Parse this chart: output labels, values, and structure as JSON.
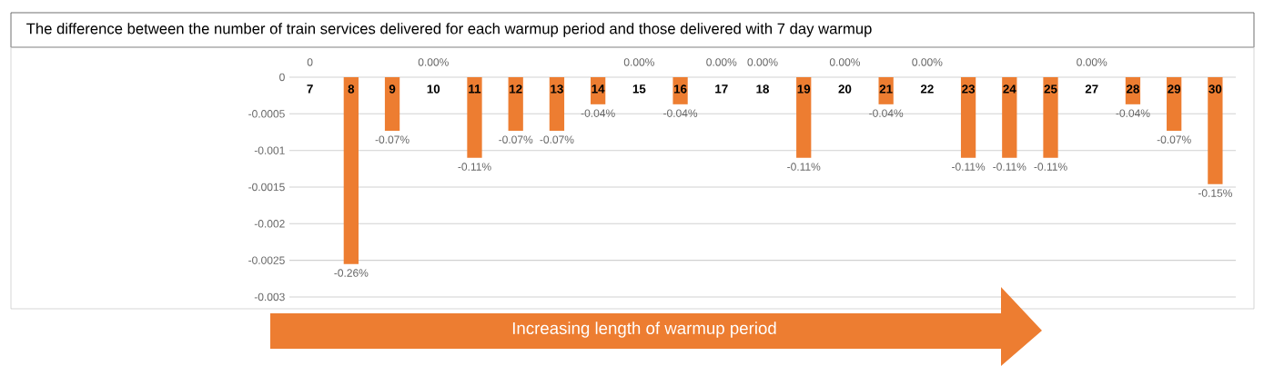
{
  "chart_data": {
    "type": "bar",
    "title": "The difference between the number of train services delivered for each warmup period and those delivered with 7 day warmup",
    "categories": [
      "7",
      "8",
      "9",
      "10",
      "11",
      "12",
      "13",
      "14",
      "15",
      "16",
      "17",
      "18",
      "19",
      "20",
      "21",
      "22",
      "23",
      "24",
      "25",
      "27",
      "28",
      "29",
      "30"
    ],
    "values": [
      0,
      -0.00255,
      -0.00073,
      0,
      -0.0011,
      -0.00073,
      -0.00073,
      -0.00037,
      0,
      -0.00037,
      0,
      0,
      -0.0011,
      0,
      -0.00037,
      0,
      -0.0011,
      -0.0011,
      -0.0011,
      0,
      -0.00037,
      -0.00073,
      -0.00146
    ],
    "value_labels": [
      "0",
      "-0.26%",
      "-0.07%",
      "0.00%",
      "-0.11%",
      "-0.07%",
      "-0.07%",
      "-0.04%",
      "0.00%",
      "-0.04%",
      "0.00%",
      "0.00%",
      "-0.11%",
      "0.00%",
      "-0.04%",
      "0.00%",
      "-0.11%",
      "-0.11%",
      "-0.11%",
      "0.00%",
      "-0.04%",
      "-0.07%",
      "-0.15%"
    ],
    "color": "#ed7d31",
    "ylim": [
      -0.003,
      0
    ],
    "yticks": [
      0,
      -0.0005,
      -0.001,
      -0.0015,
      -0.002,
      -0.0025,
      -0.003
    ],
    "grid": "y",
    "annotations": [
      "Increasing length of warmup period"
    ]
  }
}
